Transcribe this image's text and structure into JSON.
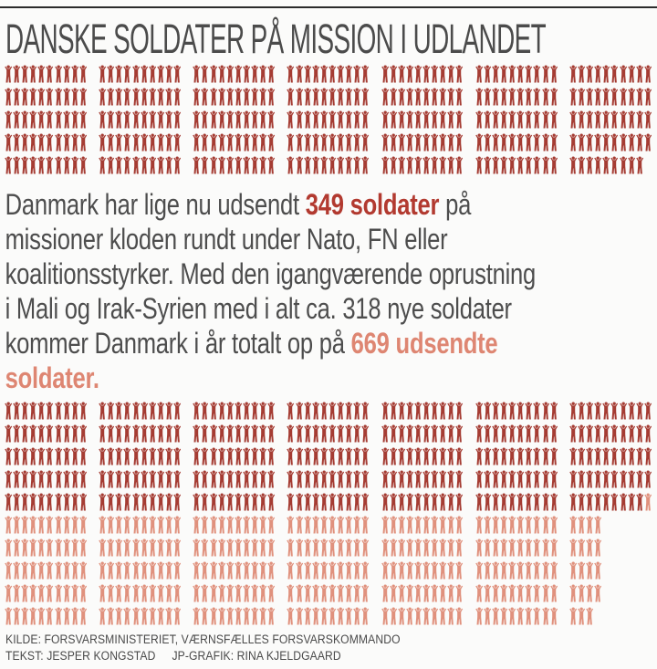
{
  "page": {
    "title": "DANSKE SOLDATER PÅ MISSION I UDLANDET",
    "background": "#fbfbfa"
  },
  "colors": {
    "page_bg": "#fbfbfa",
    "rule": "#2b2b2b",
    "title_text": "#4b4b4b",
    "body_text": "#4d4d4d",
    "footer_text": "#4a4a4a",
    "deployed": "#a53c33",
    "new_troops": "#e0917d",
    "em_deployed": "#b23a30",
    "em_total": "#de8672"
  },
  "paragraph": {
    "segments": [
      {
        "style": "plain",
        "text": "Danmark har lige nu udsendt "
      },
      {
        "style": "bold_red",
        "text": "349 soldater"
      },
      {
        "style": "plain",
        "text": " på\nmissioner kloden rundt under Nato, FN eller\nkoalitionsstyrker. Med den igangværende oprustning\ni Mali og Irak-Syrien med i alt ca. 318 nye soldater\nkommer Danmark i år totalt op på "
      },
      {
        "style": "bold_salmon",
        "text": "669 udsendte\nsoldater."
      }
    ]
  },
  "footer": {
    "source": "KILDE: FORSVARSMINISTERIET, VÆRNSFÆLLES FORSVARSKOMMANDO",
    "text_credit": "TEKST: JESPER KONGSTAD",
    "graphic_credit": "JP-GRAFIK: RINA KJELDGAARD"
  },
  "chart_data": {
    "type": "pictogram",
    "title": "DANSKE SOLDATER PÅ MISSION I UDLANDET",
    "icon": "soldier",
    "unit_value": 1,
    "layout": {
      "icons_per_group_row": 10,
      "rows_per_group": 5,
      "group_size": 50,
      "groups_per_band": 7,
      "fill_order": "column-major"
    },
    "figures": {
      "currently_deployed": 349,
      "planned_additional_from_text": 318,
      "additional_icons_shown": 320,
      "total_after_buildup": 669
    },
    "charts": [
      {
        "name": "deployed_now",
        "total": 349,
        "segments": [
          {
            "name": "deployed",
            "value": 349,
            "color_key": "deployed"
          }
        ]
      },
      {
        "name": "total_after_buildup",
        "total": 669,
        "segments": [
          {
            "name": "deployed",
            "value": 349,
            "color_key": "deployed"
          },
          {
            "name": "new",
            "value": 320,
            "color_key": "new_troops"
          }
        ]
      }
    ]
  }
}
